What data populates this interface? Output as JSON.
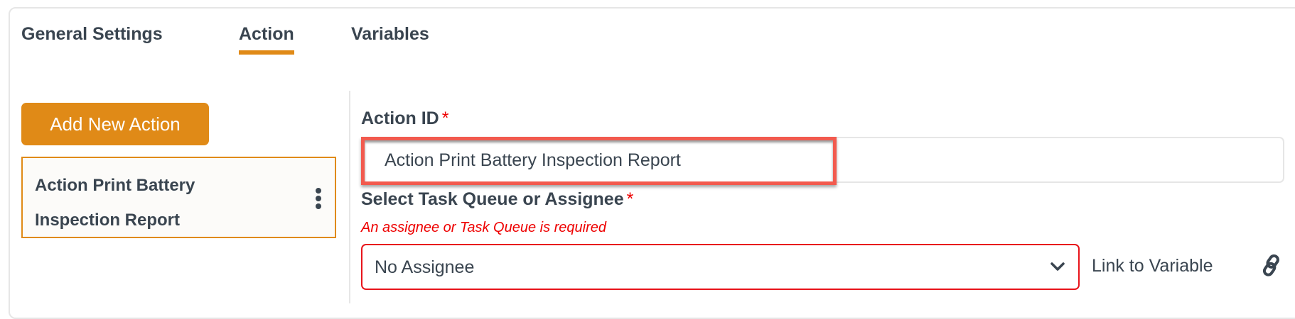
{
  "tabs": [
    {
      "label": "General Settings",
      "active": false
    },
    {
      "label": "Action",
      "active": true
    },
    {
      "label": "Variables",
      "active": false
    }
  ],
  "colors": {
    "accent": "#e08a17",
    "error": "#e8141b",
    "highlight": "#f25a4e",
    "text": "#3a4550"
  },
  "sidebar": {
    "add_button": "Add New Action",
    "items": [
      {
        "label": "Action Print Battery Inspection Report",
        "menu_icon": "kebab-menu-icon"
      }
    ]
  },
  "form": {
    "action_id": {
      "label": "Action ID",
      "required_mark": "*",
      "value": "Action Print Battery Inspection Report"
    },
    "assignee": {
      "label": "Select Task Queue or Assignee",
      "required_mark": "*",
      "error": "An assignee or Task Queue is required",
      "value": "No Assignee",
      "link_label": "Link to Variable",
      "link_icon": "link-icon"
    }
  }
}
